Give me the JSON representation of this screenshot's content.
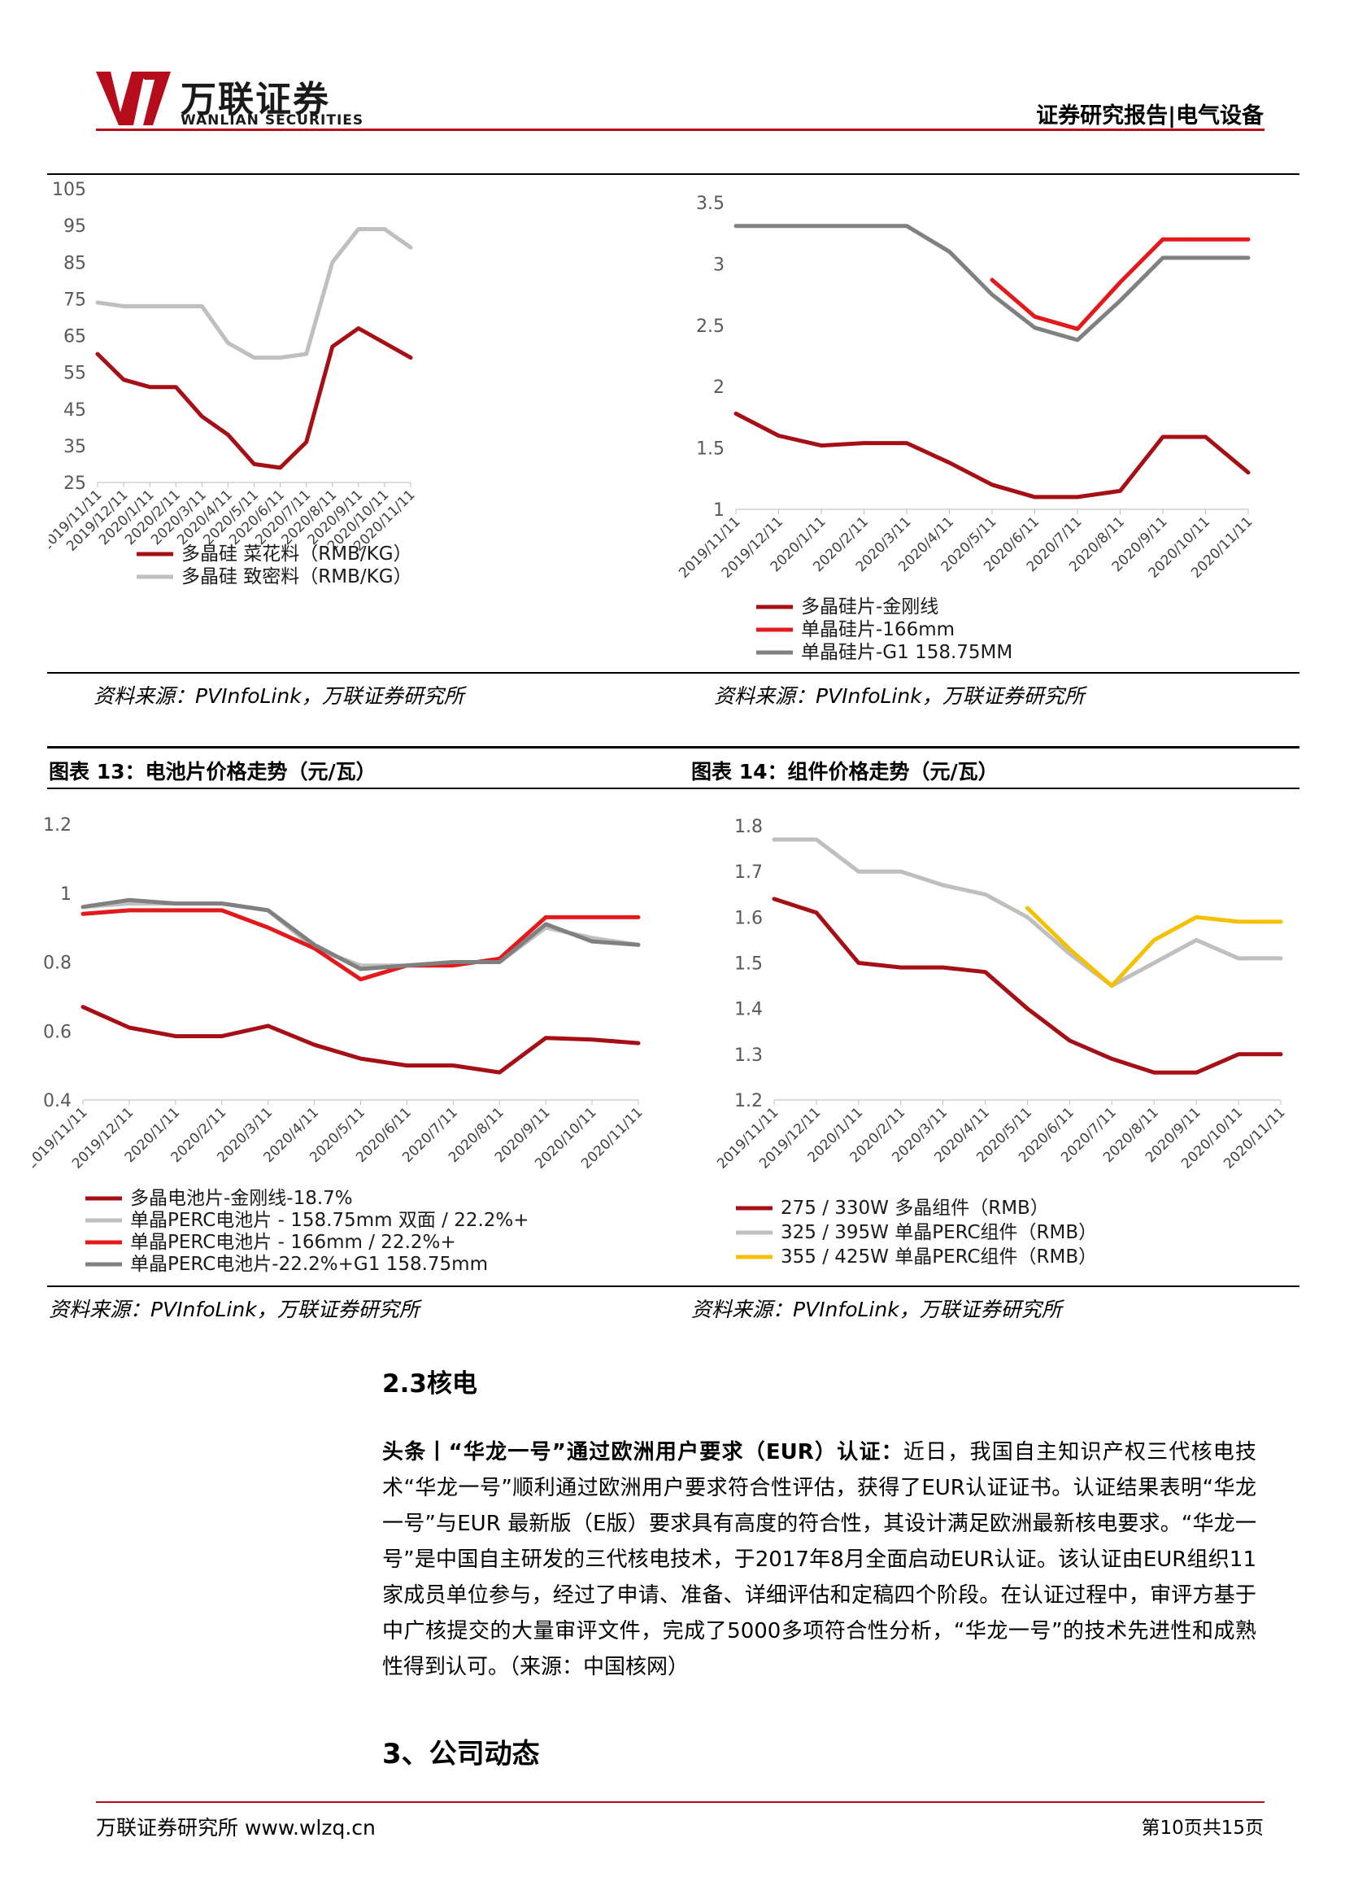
{
  "header": {
    "logo_cn": "万联证券",
    "logo_en": "WANLIAN SECURITIES",
    "right_title": "证券研究报告|电气设备"
  },
  "fig13": {
    "title": "图表 13：电池片价格走势（元/瓦）"
  },
  "fig14": {
    "title": "图表 14：组件价格走势（元/瓦）"
  },
  "sources": {
    "s1": "资料来源：PVInfoLink，万联证券研究所",
    "s2": "资料来源：PVInfoLink，万联证券研究所",
    "s3": "资料来源：PVInfoLink，万联证券研究所",
    "s4": "资料来源：PVInfoLink，万联证券研究所"
  },
  "section_2_3": "2.3核电",
  "paragraph": {
    "lead": "头条丨“华龙一号”通过欧洲用户要求（EUR）认证：",
    "body": "近日，我国自主知识产权三代核电技术“华龙一号”顺利通过欧洲用户要求符合性评估，获得了EUR认证证书。认证结果表明“华龙一号”与EUR 最新版（E版）要求具有高度的符合性，其设计满足欧洲最新核电要求。“华龙一号”是中国自主研发的三代核电技术，于2017年8月全面启动EUR认证。该认证由EUR组织11家成员单位参与，经过了申请、准备、详细评估和定稿四个阶段。在认证过程中，审评方基于中广核提交的大量审评文件，完成了5000多项符合性分析，“华龙一号”的技术先进性和成熟性得到认可。（来源：中国核网）"
  },
  "section_3": "3、公司动态",
  "footer": {
    "left": "万联证券研究所 www.wlzq.cn",
    "right": "第10页共15页"
  },
  "chart_data": [
    {
      "type": "line",
      "x": [
        "2019/11/11",
        "2019/12/11",
        "2020/1/11",
        "2020/2/11",
        "2020/3/11",
        "2020/4/11",
        "2020/5/11",
        "2020/6/11",
        "2020/7/11",
        "2020/8/11",
        "2020/9/11",
        "2020/10/11",
        "2020/11/11"
      ],
      "ylim": [
        25,
        105
      ],
      "yticks": [
        "25",
        "35",
        "45",
        "55",
        "65",
        "75",
        "85",
        "95",
        "105"
      ],
      "series": [
        {
          "name": "多晶硅 菜花料（RMB/KG）",
          "color": "#a50f15",
          "values": [
            60,
            53,
            51,
            51,
            43,
            38,
            30,
            29,
            36,
            62,
            67,
            63,
            59
          ]
        },
        {
          "name": "多晶硅 致密料（RMB/KG）",
          "color": "#bfbfbf",
          "values": [
            74,
            73,
            73,
            73,
            73,
            63,
            59,
            59,
            60,
            85,
            94,
            94,
            89
          ]
        }
      ]
    },
    {
      "type": "line",
      "x": [
        "2019/11/11",
        "2019/12/11",
        "2020/1/11",
        "2020/2/11",
        "2020/3/11",
        "2020/4/11",
        "2020/5/11",
        "2020/6/11",
        "2020/7/11",
        "2020/8/11",
        "2020/9/11",
        "2020/10/11",
        "2020/11/11"
      ],
      "ylim": [
        1,
        3.5
      ],
      "yticks": [
        "1",
        "1.5",
        "2",
        "2.5",
        "3",
        "3.5"
      ],
      "series": [
        {
          "name": "多晶硅片-金刚线",
          "color": "#a50f15",
          "values": [
            1.78,
            1.6,
            1.52,
            1.54,
            1.54,
            1.38,
            1.2,
            1.1,
            1.1,
            1.15,
            1.59,
            1.59,
            1.3
          ]
        },
        {
          "name": "单晶硅片-166mm",
          "color": "#e31a1c",
          "values": [
            null,
            null,
            null,
            null,
            null,
            null,
            2.87,
            2.57,
            2.47,
            2.85,
            3.2,
            3.2,
            3.2
          ]
        },
        {
          "name": "单晶硅片-G1 158.75MM",
          "color": "#808080",
          "values": [
            3.31,
            3.31,
            3.31,
            3.31,
            3.31,
            3.1,
            2.75,
            2.48,
            2.38,
            2.7,
            3.05,
            3.05,
            3.05
          ]
        }
      ]
    },
    {
      "type": "line",
      "x": [
        "2019/11/11",
        "2019/12/11",
        "2020/1/11",
        "2020/2/11",
        "2020/3/11",
        "2020/4/11",
        "2020/5/11",
        "2020/6/11",
        "2020/7/11",
        "2020/8/11",
        "2020/9/11",
        "2020/10/11",
        "2020/11/11"
      ],
      "ylim": [
        0.4,
        1.2
      ],
      "yticks": [
        "0.4",
        "0.6",
        "0.8",
        "1",
        "1.2"
      ],
      "series": [
        {
          "name": "多晶电池片-金刚线-18.7%",
          "color": "#a50f15",
          "values": [
            0.67,
            0.61,
            0.585,
            0.585,
            0.615,
            0.56,
            0.52,
            0.5,
            0.5,
            0.48,
            0.58,
            0.575,
            0.565
          ]
        },
        {
          "name": "单晶PERC电池片 - 158.75mm 双面 / 22.2%+",
          "color": "#bfbfbf",
          "values": [
            0.96,
            0.97,
            0.97,
            0.97,
            0.95,
            0.84,
            0.79,
            0.79,
            0.8,
            0.8,
            0.9,
            0.87,
            0.85
          ]
        },
        {
          "name": "单晶PERC电池片 - 166mm / 22.2%+",
          "color": "#e31a1c",
          "values": [
            0.94,
            0.95,
            0.95,
            0.95,
            0.9,
            0.84,
            0.75,
            0.79,
            0.79,
            0.81,
            0.93,
            0.93,
            0.93
          ]
        },
        {
          "name": "单晶PERC电池片-22.2%+G1 158.75mm",
          "color": "#808080",
          "values": [
            0.96,
            0.98,
            0.97,
            0.97,
            0.95,
            0.85,
            0.78,
            0.79,
            0.8,
            0.8,
            0.91,
            0.86,
            0.85
          ]
        }
      ]
    },
    {
      "type": "line",
      "x": [
        "2019/11/11",
        "2019/12/11",
        "2020/1/11",
        "2020/2/11",
        "2020/3/11",
        "2020/4/11",
        "2020/5/11",
        "2020/6/11",
        "2020/7/11",
        "2020/8/11",
        "2020/9/11",
        "2020/10/11",
        "2020/11/11"
      ],
      "ylim": [
        1.2,
        1.8
      ],
      "yticks": [
        "1.2",
        "1.3",
        "1.4",
        "1.5",
        "1.6",
        "1.7",
        "1.8"
      ],
      "series": [
        {
          "name": "275 / 330W 多晶组件（RMB）",
          "color": "#a50f15",
          "values": [
            1.64,
            1.61,
            1.5,
            1.49,
            1.49,
            1.48,
            1.4,
            1.33,
            1.29,
            1.26,
            1.26,
            1.3,
            1.3
          ]
        },
        {
          "name": "325 / 395W 单晶PERC组件（RMB）",
          "color": "#bfbfbf",
          "values": [
            1.77,
            1.77,
            1.7,
            1.7,
            1.67,
            1.65,
            1.6,
            1.52,
            1.45,
            1.5,
            1.55,
            1.51,
            1.51
          ]
        },
        {
          "name": "355 / 425W 单晶PERC组件（RMB）",
          "color": "#f5c000",
          "values": [
            null,
            null,
            null,
            null,
            null,
            null,
            1.62,
            1.53,
            1.45,
            1.55,
            1.6,
            1.59,
            1.59
          ]
        }
      ]
    }
  ]
}
